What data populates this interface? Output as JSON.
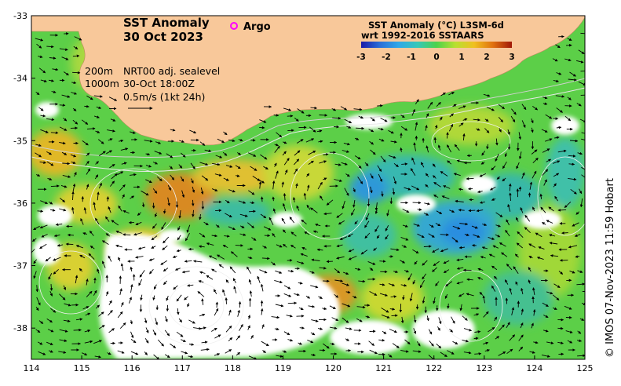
{
  "map": {
    "title_line1": "SST Anomaly",
    "title_line2": "30 Oct 2023",
    "argo_label": "Argo",
    "colorbar": {
      "title_line1": "SST Anomaly (°C) L3SM-6d",
      "title_line2": "wrt 1992-2016 SSTAARS",
      "min": -3,
      "max": 3,
      "ticks": [
        "-3",
        "-2",
        "-1",
        "0",
        "1",
        "2",
        "3"
      ],
      "colors": [
        "#1a1aa8",
        "#2a6fd8",
        "#2fa8e8",
        "#36c8b8",
        "#4cd24c",
        "#b8e030",
        "#f0c020",
        "#e07010",
        "#a01808"
      ]
    },
    "notes": {
      "contour_200": "200m",
      "contour_1000": "1000m",
      "sealevel": "NRT00 adj. sealevel",
      "timestamp": "30-Oct 18:00Z",
      "velocity_scale": "0.5m/s (1kt 24h)"
    },
    "credit": "© IMOS 07-Nov-2023 11:59 Hobart",
    "x_axis": {
      "min": 114,
      "max": 125,
      "ticks": [
        "114",
        "115",
        "116",
        "117",
        "118",
        "119",
        "120",
        "121",
        "122",
        "123",
        "124",
        "125"
      ]
    },
    "y_axis": {
      "min": -38.5,
      "max": -33,
      "ticks": [
        "-33",
        "-34",
        "-35",
        "-36",
        "-37",
        "-38"
      ]
    },
    "colors": {
      "land": "#f8c89a",
      "no_data": "#ffffff",
      "ocean_base": "#5ccf48"
    }
  }
}
